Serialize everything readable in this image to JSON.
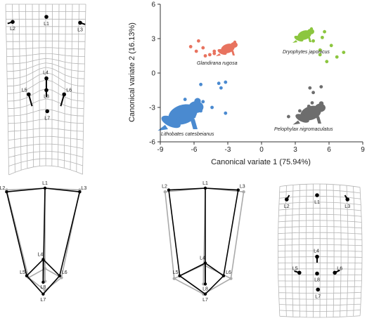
{
  "colors": {
    "rugosa": "#e8735f",
    "japonicus": "#8cc63f",
    "catesbeianus": "#4a8ad0",
    "nigromaculatus": "#6d6d6d",
    "grid": "#b5b5b5",
    "wire_black": "#000000",
    "wire_grey": "#aaaaaa"
  },
  "landmark_labels": {
    "L1": "L1",
    "L2": "L2",
    "L3": "L3",
    "L4": "L4",
    "L5": "L5",
    "L6": "L6",
    "L7": "L7",
    "L8": "L8"
  },
  "icons": [
    "frog-silhouette-icon"
  ],
  "chart_data": [
    {
      "type": "scatter",
      "name": "CVA scatter",
      "title": "",
      "xlabel": "Canonical variate 1 (75.94%)",
      "ylabel": "Canonical variate 2 (16.13%)",
      "xlim": [
        -9,
        9
      ],
      "ylim": [
        -6,
        6
      ],
      "xticks": [
        -9,
        -6,
        -3,
        0,
        3,
        6,
        9
      ],
      "yticks": [
        -6,
        -3,
        0,
        3,
        6
      ],
      "grid": false,
      "series": [
        {
          "name": "Glandirana rugosa",
          "color_key": "rugosa",
          "points": [
            [
              -5.6,
              2.8
            ],
            [
              -6.3,
              2.3
            ],
            [
              -5.8,
              1.9
            ],
            [
              -5.2,
              2.2
            ],
            [
              -4.6,
              1.6
            ],
            [
              -4.2,
              1.7
            ],
            [
              -5.0,
              1.5
            ],
            [
              -4.2,
              1.9
            ]
          ]
        },
        {
          "name": "Dryophytes japonicus",
          "color_key": "japonicus",
          "points": [
            [
              4.6,
              2.8
            ],
            [
              5.4,
              3.1
            ],
            [
              6.2,
              2.4
            ],
            [
              5.2,
              2.0
            ],
            [
              7.3,
              1.8
            ],
            [
              6.7,
              1.4
            ],
            [
              5.8,
              1.0
            ],
            [
              5.2,
              1.6
            ],
            [
              5.6,
              3.6
            ]
          ]
        },
        {
          "name": "Lithobates catesbeianus",
          "color_key": "catesbeianus",
          "points": [
            [
              -3.8,
              -0.9
            ],
            [
              -3.2,
              -0.8
            ],
            [
              -3.6,
              -1.3
            ],
            [
              -5.4,
              -1.0
            ],
            [
              -6.8,
              -2.3
            ],
            [
              -6.4,
              -3.0
            ],
            [
              -5.4,
              -3.3
            ],
            [
              -5.2,
              -2.5
            ],
            [
              -4.4,
              -3.0
            ],
            [
              -3.2,
              -3.5
            ],
            [
              -7.4,
              -4.0
            ],
            [
              -6.0,
              -3.8
            ]
          ]
        },
        {
          "name": "Pelophylax nigromaculatus",
          "color_key": "nigromaculatus",
          "points": [
            [
              4.3,
              -1.3
            ],
            [
              4.6,
              -1.7
            ],
            [
              5.3,
              -1.2
            ],
            [
              4.5,
              -2.6
            ],
            [
              4.2,
              -2.9
            ],
            [
              5.4,
              -3.0
            ],
            [
              4.9,
              -3.3
            ],
            [
              2.4,
              -3.8
            ],
            [
              3.4,
              -3.3
            ]
          ]
        }
      ]
    },
    {
      "type": "line",
      "name": "Wireframe comparison CV1",
      "landmarks": [
        "L1",
        "L2",
        "L3",
        "L4",
        "L5",
        "L6",
        "L7",
        "L8"
      ],
      "links": [
        [
          "L1",
          "L2"
        ],
        [
          "L1",
          "L3"
        ],
        [
          "L2",
          "L5"
        ],
        [
          "L3",
          "L6"
        ],
        [
          "L1",
          "L8"
        ],
        [
          "L4",
          "L5"
        ],
        [
          "L4",
          "L6"
        ],
        [
          "L5",
          "L7"
        ],
        [
          "L6",
          "L7"
        ],
        [
          "L4",
          "L8"
        ]
      ],
      "series": [
        {
          "style": "black",
          "points": {
            "L1": [
              0.0,
              0.0
            ],
            "L2": [
              -0.42,
              0.04
            ],
            "L3": [
              0.38,
              0.04
            ],
            "L4": [
              -0.02,
              0.78
            ],
            "L5": [
              -0.2,
              0.96
            ],
            "L6": [
              0.16,
              0.96
            ],
            "L7": [
              -0.02,
              1.16
            ],
            "L8": [
              -0.02,
              1.03
            ]
          }
        },
        {
          "style": "grey",
          "points": {
            "L1": [
              0.0,
              0.0
            ],
            "L2": [
              -0.42,
              0.02
            ],
            "L3": [
              0.38,
              0.02
            ],
            "L4": [
              0.0,
              0.88
            ],
            "L5": [
              -0.18,
              0.98
            ],
            "L6": [
              0.18,
              0.98
            ],
            "L7": [
              0.0,
              1.12
            ],
            "L8": [
              0.0,
              1.02
            ]
          }
        }
      ]
    },
    {
      "type": "line",
      "name": "Wireframe comparison CV2",
      "landmarks": [
        "L1",
        "L2",
        "L3",
        "L4",
        "L5",
        "L6",
        "L7",
        "L8"
      ],
      "links": [
        [
          "L1",
          "L2"
        ],
        [
          "L1",
          "L3"
        ],
        [
          "L2",
          "L5"
        ],
        [
          "L3",
          "L6"
        ],
        [
          "L1",
          "L8"
        ],
        [
          "L4",
          "L5"
        ],
        [
          "L4",
          "L6"
        ],
        [
          "L5",
          "L7"
        ],
        [
          "L6",
          "L7"
        ],
        [
          "L4",
          "L8"
        ]
      ],
      "series": [
        {
          "style": "black",
          "points": {
            "L1": [
              0.0,
              0.0
            ],
            "L2": [
              -0.4,
              0.02
            ],
            "L3": [
              0.36,
              0.02
            ],
            "L4": [
              0.0,
              0.82
            ],
            "L5": [
              -0.28,
              0.96
            ],
            "L6": [
              0.2,
              0.96
            ],
            "L7": [
              0.0,
              1.16
            ],
            "L8": [
              0.0,
              1.05
            ]
          }
        },
        {
          "style": "grey",
          "points": {
            "L1": [
              0.0,
              0.0
            ],
            "L2": [
              -0.44,
              0.04
            ],
            "L3": [
              0.42,
              0.04
            ],
            "L4": [
              -0.02,
              0.84
            ],
            "L5": [
              -0.34,
              0.99
            ],
            "L6": [
              0.28,
              0.99
            ],
            "L7": [
              -0.02,
              1.16
            ],
            "L8": [
              -0.02,
              1.05
            ]
          }
        }
      ]
    },
    {
      "type": "line",
      "name": "Deformation grid CV1",
      "landmarks": {
        "L1": [
          0.0,
          0.0
        ],
        "L2": [
          -0.4,
          0.06
        ],
        "L3": [
          0.4,
          0.07
        ],
        "L4": [
          0.0,
          0.73
        ],
        "L5": [
          -0.21,
          0.92
        ],
        "L6": [
          0.21,
          0.92
        ],
        "L7": [
          0.01,
          1.12
        ],
        "L8": [
          0.0,
          0.87
        ]
      },
      "displacements": {
        "L2": [
          -0.06,
          0.02
        ],
        "L3": [
          0.06,
          0.02
        ],
        "L4": [
          0.0,
          0.22
        ],
        "L5": [
          0.04,
          0.14
        ],
        "L6": [
          -0.04,
          0.14
        ],
        "L7": [
          0.0,
          0.0
        ],
        "L8": [
          0.0,
          -0.15
        ]
      }
    },
    {
      "type": "line",
      "name": "Deformation grid CV2",
      "landmarks": {
        "L1": [
          0.0,
          0.0
        ],
        "L2": [
          -0.36,
          0.05
        ],
        "L3": [
          0.36,
          0.05
        ],
        "L4": [
          0.0,
          0.73
        ],
        "L5": [
          -0.21,
          0.92
        ],
        "L6": [
          0.21,
          0.92
        ],
        "L7": [
          0.01,
          1.12
        ],
        "L8": [
          0.0,
          0.93
        ]
      },
      "displacements": {
        "L2": [
          0.03,
          -0.05
        ],
        "L3": [
          -0.03,
          -0.05
        ],
        "L4": [
          0.0,
          0.07
        ],
        "L5": [
          -0.06,
          -0.02
        ],
        "L6": [
          0.06,
          -0.03
        ],
        "L7": [
          0.0,
          0.0
        ],
        "L8": [
          0.0,
          -0.02
        ]
      }
    }
  ]
}
